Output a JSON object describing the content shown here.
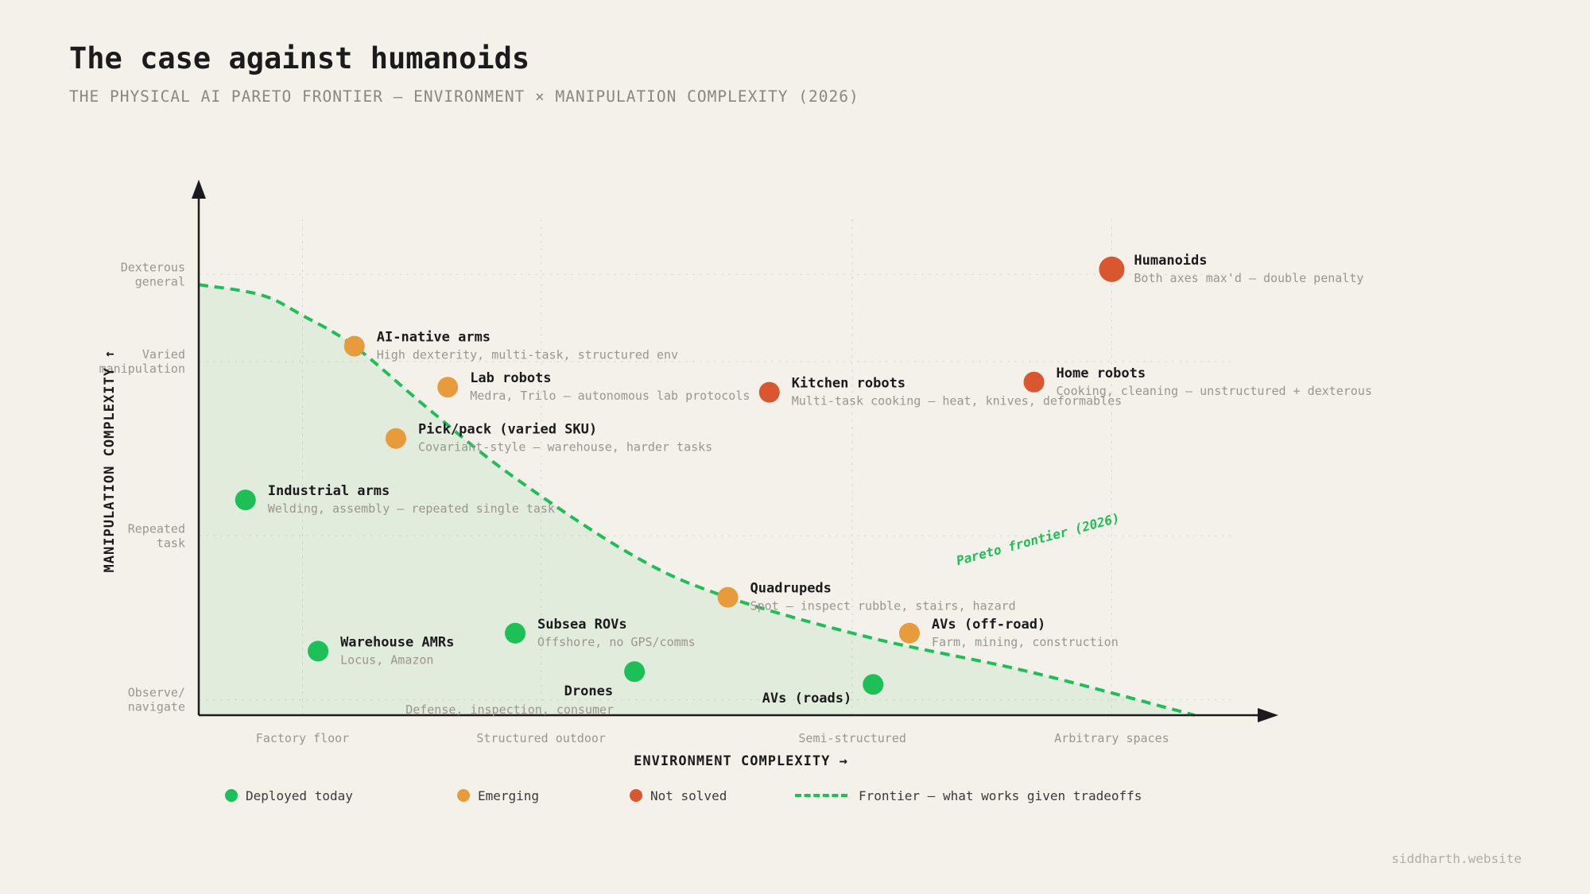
{
  "title": "The case against humanoids",
  "subtitle": "THE PHYSICAL AI PARETO FRONTIER — ENVIRONMENT × MANIPULATION COMPLEXITY (2026)",
  "credit": "siddharth.website",
  "colors": {
    "deployed": "#1dbf57",
    "emerging": "#e79b3b",
    "not_solved": "#d9562f",
    "frontier": "#1dbf57",
    "background": "#f4f1ea"
  },
  "legend": [
    {
      "key": "deployed",
      "label": "Deployed today"
    },
    {
      "key": "emerging",
      "label": "Emerging"
    },
    {
      "key": "not_solved",
      "label": "Not solved"
    },
    {
      "key": "frontier",
      "label": "Frontier — what works given tradeoffs"
    }
  ],
  "chart_data": {
    "type": "scatter",
    "xlabel": "ENVIRONMENT COMPLEXITY →",
    "ylabel": "MANIPULATION COMPLEXITY ↑",
    "xlim": [
      0,
      10
    ],
    "ylim": [
      0,
      10
    ],
    "grid": true,
    "x_ticks": [
      {
        "value": 1,
        "label": "Factory floor"
      },
      {
        "value": 3.3,
        "label": "Structured outdoor"
      },
      {
        "value": 6.3,
        "label": "Semi-structured"
      },
      {
        "value": 8.8,
        "label": "Arbitrary spaces"
      }
    ],
    "y_ticks": [
      {
        "value": 0.3,
        "label": "Observe/\nnavigate"
      },
      {
        "value": 3.5,
        "label": "Repeated\ntask"
      },
      {
        "value": 6.9,
        "label": "Varied\nmanipulation"
      },
      {
        "value": 8.6,
        "label": "Dexterous\ngeneral"
      }
    ],
    "points": [
      {
        "name": "Humanoids",
        "desc": "Both axes max'd — double penalty",
        "x": 8.8,
        "y": 8.7,
        "status": "not_solved",
        "large": true
      },
      {
        "name": "AI-native arms",
        "desc": "High dexterity, multi-task, structured env",
        "x": 1.5,
        "y": 7.2,
        "status": "emerging"
      },
      {
        "name": "Lab robots",
        "desc": "Medra, Trilo — autonomous lab protocols",
        "x": 2.4,
        "y": 6.4,
        "status": "emerging"
      },
      {
        "name": "Kitchen robots",
        "desc": "Multi-task cooking — heat, knives, deformables",
        "x": 5.5,
        "y": 6.3,
        "status": "not_solved"
      },
      {
        "name": "Home robots",
        "desc": "Cooking, cleaning — unstructured + dexterous",
        "x": 8.05,
        "y": 6.5,
        "status": "not_solved"
      },
      {
        "name": "Pick/pack (varied SKU)",
        "desc": "Covariant-style — warehouse, harder tasks",
        "x": 1.9,
        "y": 5.4,
        "status": "emerging"
      },
      {
        "name": "Industrial arms",
        "desc": "Welding, assembly — repeated single task",
        "x": 0.45,
        "y": 4.2,
        "status": "deployed"
      },
      {
        "name": "Quadrupeds",
        "desc": "Spot — inspect rubble, stairs, hazard",
        "x": 5.1,
        "y": 2.3,
        "status": "emerging"
      },
      {
        "name": "AVs (off-road)",
        "desc": "Farm, mining, construction",
        "x": 6.85,
        "y": 1.6,
        "status": "emerging"
      },
      {
        "name": "Subsea ROVs",
        "desc": "Offshore, no GPS/comms",
        "x": 3.05,
        "y": 1.6,
        "status": "deployed"
      },
      {
        "name": "Warehouse AMRs",
        "desc": "Locus, Amazon",
        "x": 1.15,
        "y": 1.25,
        "status": "deployed"
      },
      {
        "name": "Drones",
        "desc": "Defense, inspection, consumer",
        "x": 4.2,
        "y": 0.85,
        "status": "deployed"
      },
      {
        "name": "AVs (roads)",
        "desc": "",
        "x": 6.5,
        "y": 0.6,
        "status": "deployed"
      }
    ],
    "frontier": {
      "label": "Pareto frontier (2026)",
      "points": [
        [
          0,
          8.4
        ],
        [
          0.6,
          8.2
        ],
        [
          1,
          7.8
        ],
        [
          1.5,
          7.2
        ],
        [
          2.2,
          6.0
        ],
        [
          3,
          4.7
        ],
        [
          4.2,
          3.1
        ],
        [
          5.1,
          2.3
        ],
        [
          6.5,
          1.5
        ],
        [
          8,
          0.85
        ],
        [
          9.6,
          0
        ]
      ]
    }
  }
}
